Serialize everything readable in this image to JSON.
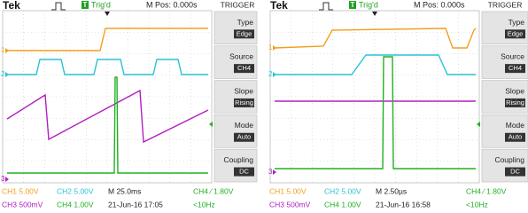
{
  "screens": [
    {
      "header": {
        "brand": "Tek",
        "status_icon": "T",
        "status": "Trig'd",
        "position": "M Pos: 0.000s",
        "menu_title": "TRIGGER"
      },
      "menu": [
        {
          "label": "Type",
          "value": "Edge"
        },
        {
          "label": "Source",
          "value": "CH4"
        },
        {
          "label": "Slope",
          "value": "Rising"
        },
        {
          "label": "Mode",
          "value": "Auto"
        },
        {
          "label": "Coupling",
          "value": "DC"
        }
      ],
      "markers": [
        "1",
        "2",
        "3"
      ],
      "status_lines": [
        [
          "CH1 5.00V",
          "CH2 5.00V",
          "M 25.0ms",
          "CH4 ⁄ 1.80V"
        ],
        [
          "CH3 500mV",
          "CH4 1.00V",
          "21-Jun-16 17:05",
          "<10Hz"
        ]
      ]
    },
    {
      "header": {
        "brand": "Tek",
        "status_icon": "T",
        "status": "Trig'd",
        "position": "M Pos: 0.000s",
        "menu_title": "TRIGGER"
      },
      "menu": [
        {
          "label": "Type",
          "value": "Edge"
        },
        {
          "label": "Source",
          "value": "CH4"
        },
        {
          "label": "Slope",
          "value": "Rising"
        },
        {
          "label": "Mode",
          "value": "Auto"
        },
        {
          "label": "Coupling",
          "value": "DC"
        }
      ],
      "markers": [
        "1",
        "2",
        "3"
      ],
      "status_lines": [
        [
          "CH1 5.00V",
          "CH2 5.00V",
          "M 2.50µs",
          "CH4 ⁄ 1.80V"
        ],
        [
          "CH3 500mV",
          "CH4 1.00V",
          "21-Jun-16 16:58",
          "<10Hz"
        ]
      ]
    }
  ]
}
